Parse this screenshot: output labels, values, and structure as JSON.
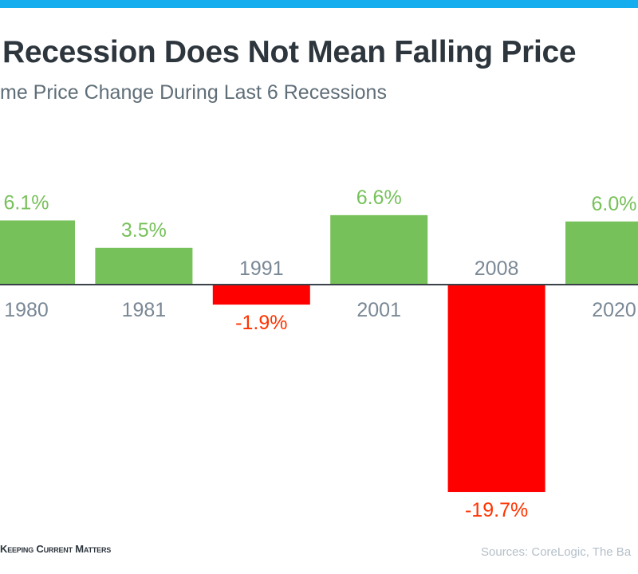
{
  "header": {
    "title": "Recession Does Not Mean Falling Price",
    "subtitle": "me Price Change During Last 6 Recessions"
  },
  "footer": {
    "logo": "Keeping Current Matters",
    "sources": "Sources: CoreLogic, The Ba"
  },
  "colors": {
    "accent_bar": "#16adef",
    "positive": "#77c15a",
    "negative_bar": "#ff0000",
    "negative_label": "#ff3300",
    "year_label": "#7a8896",
    "baseline": "#3a4148"
  },
  "chart_data": {
    "type": "bar",
    "title": "Recession Does Not Mean Falling Price",
    "subtitle": "me Price Change During Last 6 Recessions",
    "categories": [
      "1980",
      "1981",
      "1991",
      "2001",
      "2008",
      "2020"
    ],
    "values": [
      6.1,
      3.5,
      -1.9,
      6.6,
      -19.7,
      6.0
    ],
    "data_labels": [
      "6.1%",
      "3.5%",
      "-1.9%",
      "6.6%",
      "-19.7%",
      "6.0%"
    ],
    "unit": "%",
    "grid": false,
    "legend": "none"
  }
}
